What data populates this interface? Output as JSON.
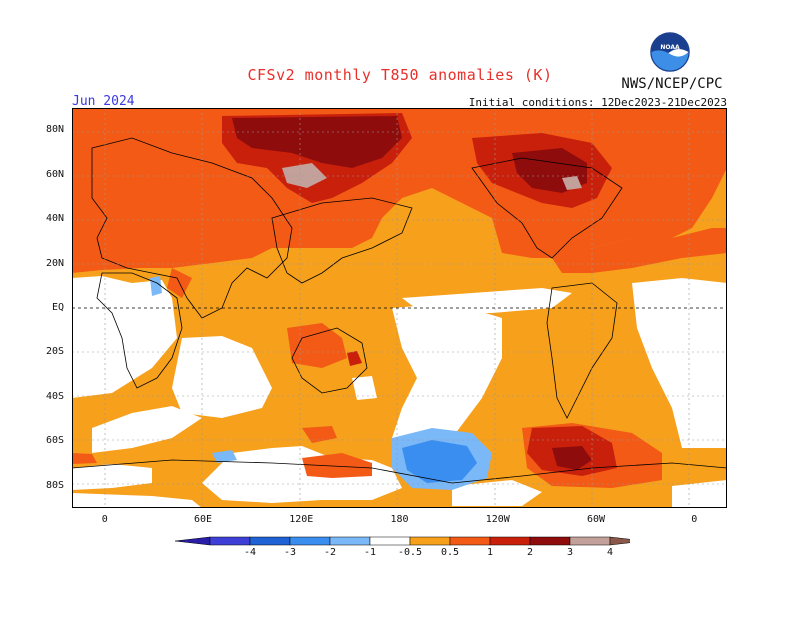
{
  "header": {
    "title": "CFSv2 monthly T850 anomalies (K)",
    "period": "Jun 2024",
    "initial_conditions": "Initial conditions: 12Dec2023-21Dec2023",
    "agency": "NWS/NCEP/CPC",
    "logo_text": "NOAA"
  },
  "map": {
    "lat_labels": [
      "80N",
      "60N",
      "40N",
      "20N",
      "EQ",
      "20S",
      "40S",
      "60S",
      "80S"
    ],
    "lon_labels": [
      "0",
      "60E",
      "120E",
      "180",
      "120W",
      "60W",
      "0"
    ],
    "lat_values": [
      80,
      60,
      40,
      20,
      0,
      -20,
      -40,
      -60,
      -80
    ],
    "lon_values": [
      0,
      60,
      120,
      180,
      240,
      300,
      360
    ],
    "lon_range": [
      -20,
      380
    ],
    "lat_range": [
      -90,
      90
    ]
  },
  "colorbar": {
    "labels": [
      "-4",
      "-3",
      "-2",
      "-1",
      "-0.5",
      "0.5",
      "1",
      "2",
      "3",
      "4"
    ],
    "colors": [
      "#2a1ea8",
      "#3e3fd6",
      "#1e62d6",
      "#3a8ef0",
      "#7ab8f8",
      "#ffffff",
      "#f6a01c",
      "#f25a16",
      "#c9200c",
      "#8e0c0c",
      "#c4a09a",
      "#8a5848"
    ]
  },
  "colors": {
    "orange": "#f6a01c",
    "red_orange": "#f25a16",
    "red": "#c9200c",
    "dark_red": "#8e0c0c",
    "pink": "#c4a09a",
    "light_blue": "#7ab8f8",
    "blue": "#3a8ef0",
    "mid_blue": "#1e62d6"
  }
}
